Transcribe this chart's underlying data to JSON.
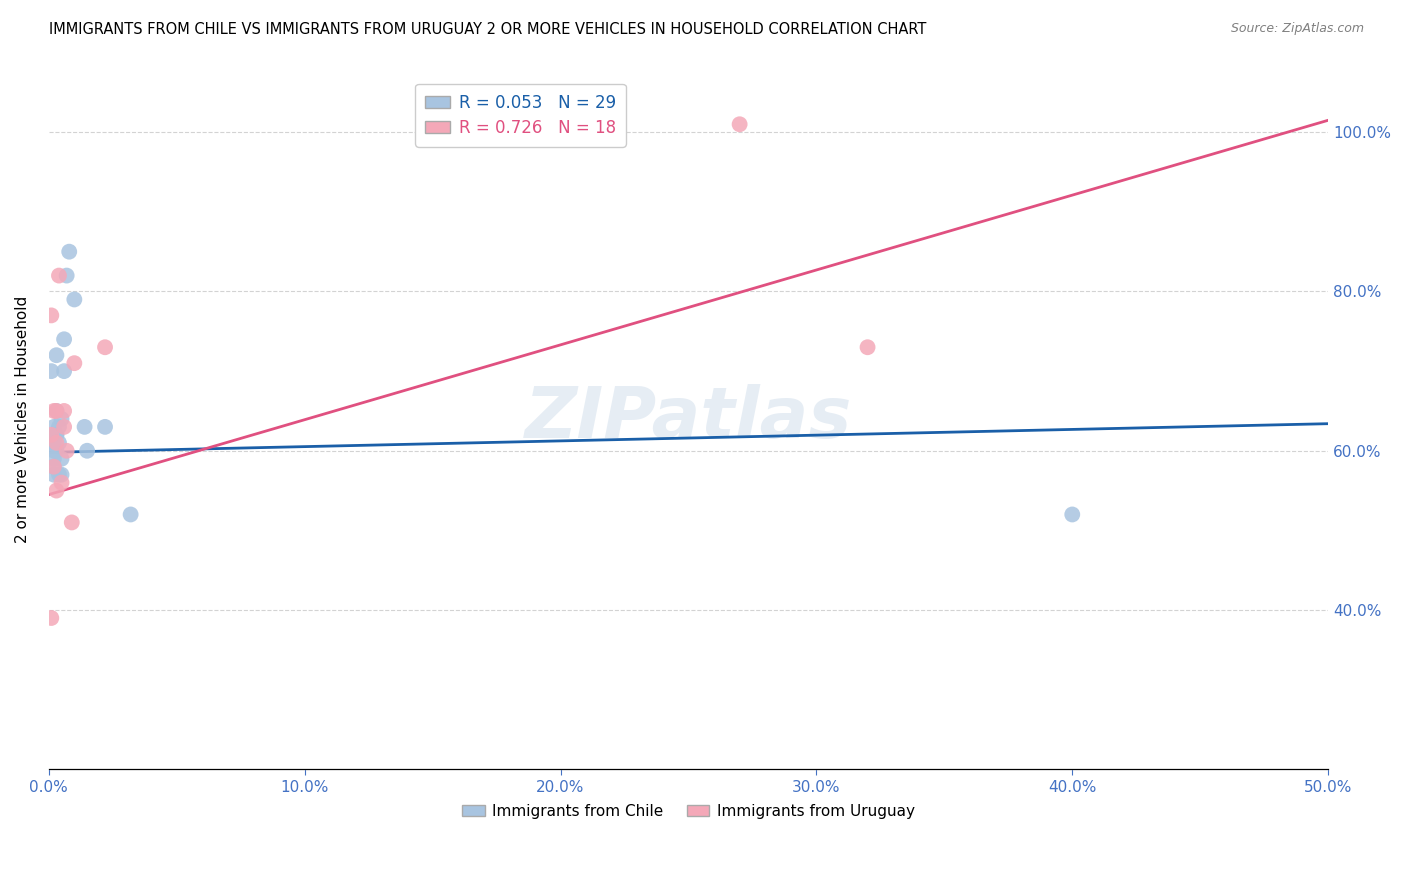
{
  "title": "IMMIGRANTS FROM CHILE VS IMMIGRANTS FROM URUGUAY 2 OR MORE VEHICLES IN HOUSEHOLD CORRELATION CHART",
  "source": "Source: ZipAtlas.com",
  "ylabel": "2 or more Vehicles in Household",
  "xlim": [
    0.0,
    0.5
  ],
  "ylim": [
    0.2,
    1.08
  ],
  "xticks": [
    0.0,
    0.1,
    0.2,
    0.3,
    0.4,
    0.5
  ],
  "yticks": [
    0.4,
    0.6,
    0.8,
    1.0
  ],
  "ytick_labels": [
    "40.0%",
    "60.0%",
    "80.0%",
    "100.0%"
  ],
  "xtick_labels": [
    "0.0%",
    "10.0%",
    "20.0%",
    "30.0%",
    "40.0%",
    "50.0%"
  ],
  "chile_color": "#a8c4e0",
  "uruguay_color": "#f4a8b8",
  "chile_line_color": "#1a5fa8",
  "uruguay_line_color": "#e05080",
  "chile_R": 0.053,
  "chile_N": 29,
  "uruguay_R": 0.726,
  "uruguay_N": 18,
  "watermark": "ZIPatlas",
  "chile_x": [
    0.001,
    0.001,
    0.002,
    0.002,
    0.002,
    0.002,
    0.002,
    0.002,
    0.003,
    0.003,
    0.003,
    0.003,
    0.003,
    0.004,
    0.004,
    0.004,
    0.005,
    0.005,
    0.005,
    0.006,
    0.006,
    0.007,
    0.008,
    0.01,
    0.014,
    0.015,
    0.022,
    0.032,
    0.4
  ],
  "chile_y": [
    0.7,
    0.61,
    0.59,
    0.57,
    0.61,
    0.63,
    0.58,
    0.6,
    0.6,
    0.62,
    0.65,
    0.72,
    0.62,
    0.61,
    0.63,
    0.57,
    0.64,
    0.59,
    0.57,
    0.74,
    0.7,
    0.82,
    0.85,
    0.79,
    0.63,
    0.6,
    0.63,
    0.52,
    0.52
  ],
  "uruguay_x": [
    0.001,
    0.001,
    0.001,
    0.002,
    0.002,
    0.003,
    0.003,
    0.003,
    0.004,
    0.005,
    0.006,
    0.006,
    0.007,
    0.009,
    0.01,
    0.022,
    0.27,
    0.32
  ],
  "uruguay_y": [
    0.77,
    0.62,
    0.39,
    0.58,
    0.65,
    0.61,
    0.65,
    0.55,
    0.82,
    0.56,
    0.65,
    0.63,
    0.6,
    0.51,
    0.71,
    0.73,
    1.01,
    0.73
  ],
  "chile_line_x": [
    0.0,
    0.5
  ],
  "chile_line_y": [
    0.598,
    0.634
  ],
  "uruguay_line_x": [
    0.0,
    0.5
  ],
  "uruguay_line_y": [
    0.545,
    1.015
  ]
}
